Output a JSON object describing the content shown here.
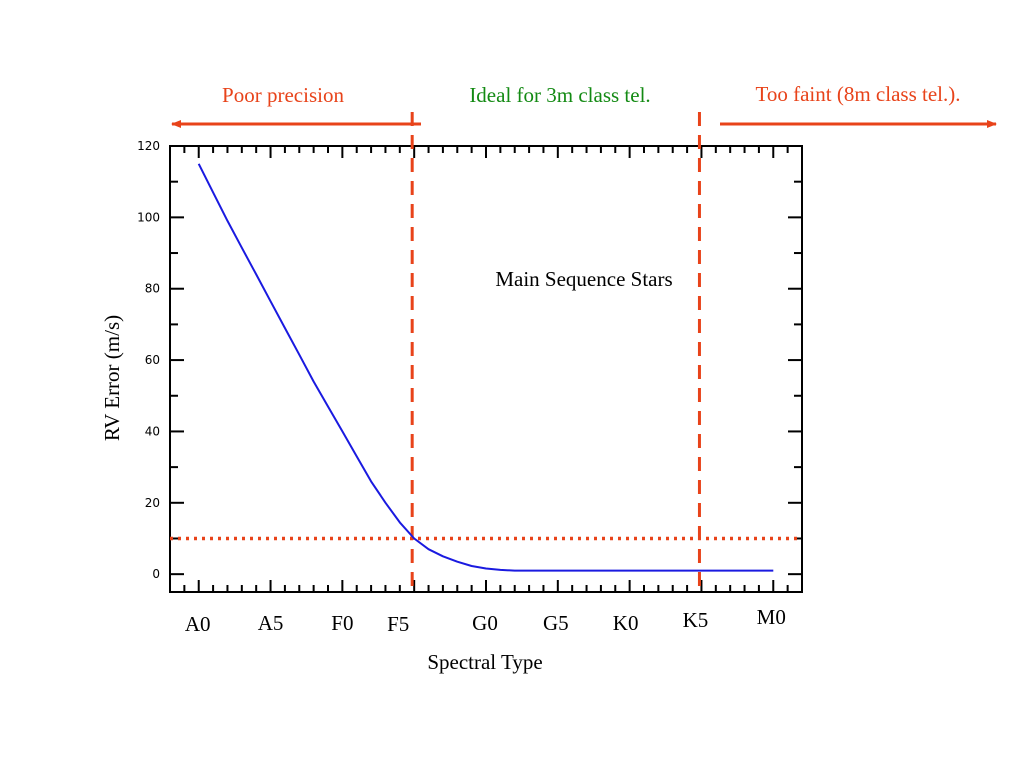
{
  "colors": {
    "curve": "#1a1ae0",
    "marker": "#e8431a",
    "green": "#138a13",
    "red": "#e8431a",
    "axis": "#000000"
  },
  "annotations": {
    "poor_precision": "Poor precision",
    "ideal": "Ideal for 3m class tel.",
    "too_faint": "Too faint (8m class tel.).",
    "inside_label": "Main Sequence Stars"
  },
  "chart_data": {
    "type": "line",
    "title": "",
    "xlabel": "Spectral Type",
    "ylabel": "RV Error (m/s)",
    "ylim": [
      -5,
      120
    ],
    "yticks": [
      0,
      20,
      40,
      60,
      80,
      100,
      120
    ],
    "categories": [
      "A0",
      "A5",
      "F0",
      "F5",
      "G0",
      "G5",
      "K0",
      "K5",
      "M0"
    ],
    "category_positions": [
      0,
      5,
      10,
      15,
      20,
      25,
      30,
      35,
      40
    ],
    "xlim": [
      -2,
      42
    ],
    "grid": false,
    "series": [
      {
        "x": [
          0,
          1,
          2,
          3,
          4,
          5,
          6,
          7,
          8,
          9,
          10,
          11,
          12,
          13,
          14,
          15,
          16,
          17,
          18,
          19,
          20,
          21,
          22,
          23,
          24,
          25,
          26,
          27,
          28,
          29,
          30,
          31,
          32,
          33,
          34,
          35,
          36,
          37,
          38,
          39,
          40
        ],
        "values": [
          115,
          107,
          99,
          91.5,
          84,
          76.5,
          69,
          61.5,
          54,
          47,
          40,
          33,
          26,
          20,
          14.5,
          10,
          7,
          5,
          3.5,
          2.3,
          1.6,
          1.2,
          1,
          1,
          1,
          1,
          1,
          1,
          1,
          1,
          1,
          1,
          1,
          1,
          1,
          1,
          1,
          1,
          1,
          1,
          1
        ]
      }
    ],
    "reference_lines": {
      "horizontal_y": 10,
      "vertical_x": [
        15,
        35
      ]
    }
  }
}
